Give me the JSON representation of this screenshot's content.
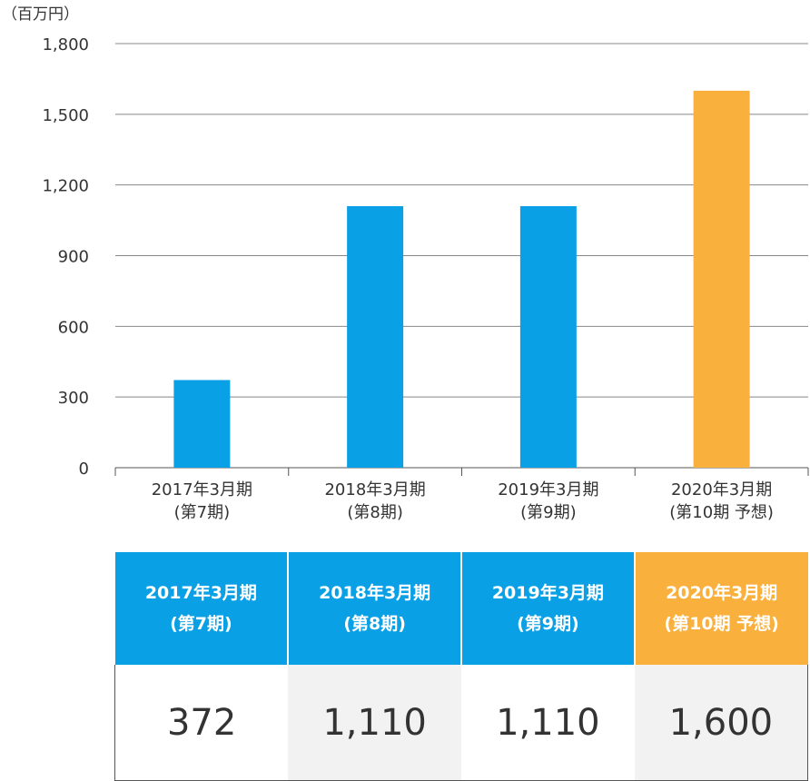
{
  "chart_data": {
    "type": "bar",
    "unit_label": "（百万円）",
    "ylim": [
      0,
      1800
    ],
    "yticks": [
      "0",
      "300",
      "600",
      "900",
      "1,200",
      "1,500",
      "1,800"
    ],
    "categories": [
      [
        "2017年3月期",
        "(第7期)"
      ],
      [
        "2018年3月期",
        "(第8期)"
      ],
      [
        "2019年3月期",
        "(第9期)"
      ],
      [
        "2020年3月期",
        "(第10期 予想)"
      ]
    ],
    "values": [
      372,
      1110,
      1110,
      1600
    ],
    "grid": true,
    "colors": {
      "actual": "#0aa0e6",
      "forecast": "#f9b03d",
      "grid": "#888888",
      "axis": "#555555"
    }
  },
  "table": {
    "headers": [
      {
        "line1": "2017年3月期",
        "line2": "(第7期)",
        "color": "#0aa0e6"
      },
      {
        "line1": "2018年3月期",
        "line2": "(第8期)",
        "color": "#0aa0e6"
      },
      {
        "line1": "2019年3月期",
        "line2": "(第9期)",
        "color": "#0aa0e6"
      },
      {
        "line1": "2020年3月期",
        "line2": "(第10期 予想)",
        "color": "#f9b03d"
      }
    ],
    "values": [
      {
        "text": "372",
        "bg": "#ffffff"
      },
      {
        "text": "1,110",
        "bg": "#f2f2f2"
      },
      {
        "text": "1,110",
        "bg": "#ffffff"
      },
      {
        "text": "1,600",
        "bg": "#f2f2f2"
      }
    ]
  }
}
